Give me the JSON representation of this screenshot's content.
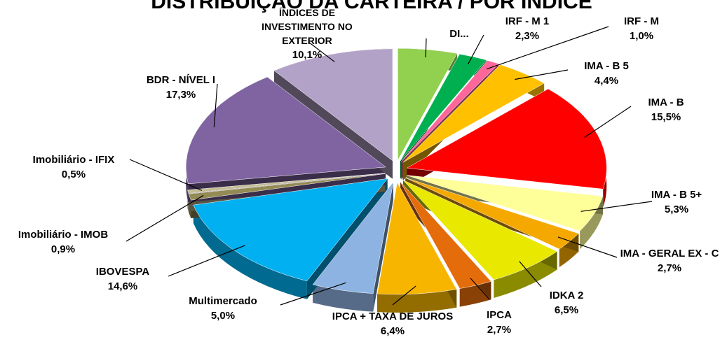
{
  "chart_data": {
    "type": "pie",
    "title": "DISTRIBUIÇÃO DA CARTEIRA / POR ÍNDICE",
    "categories": [
      "DI...",
      "IRF - M 1",
      "IRF - M",
      "IMA - B 5",
      "IMA - B",
      "IMA - B 5+",
      "IMA - GERAL EX - C",
      "IDKA 2",
      "IPCA",
      "IPCA + TAXA DE JUROS",
      "Multimercado",
      "IBOVESPA",
      "Imobiliário - IMOB",
      "Imobiliário - IFIX",
      "BDR - NÍVEL I",
      "ÍNDICES DE INVESTIMENTO NO EXTERIOR"
    ],
    "values": [
      4.8,
      2.3,
      1.0,
      4.4,
      15.5,
      5.3,
      2.7,
      6.5,
      2.7,
      6.4,
      5.0,
      14.6,
      0.9,
      0.5,
      17.3,
      10.1
    ],
    "value_labels": [
      null,
      "2,3%",
      "1,0%",
      "4,4%",
      "15,5%",
      "5,3%",
      "2,7%",
      "6,5%",
      "2,7%",
      "6,4%",
      "5,0%",
      "14,6%",
      "0,9%",
      "0,5%",
      "17,3%",
      "10,1%"
    ],
    "colors": [
      "#92d050",
      "#00b050",
      "#ff6699",
      "#ffc000",
      "#ff0000",
      "#ffff99",
      "#f5a800",
      "#e8e800",
      "#e46c0a",
      "#f7b500",
      "#8db3e2",
      "#00b0f0",
      "#948a54",
      "#c4bd97",
      "#8064a2",
      "#b3a2c7"
    ]
  }
}
